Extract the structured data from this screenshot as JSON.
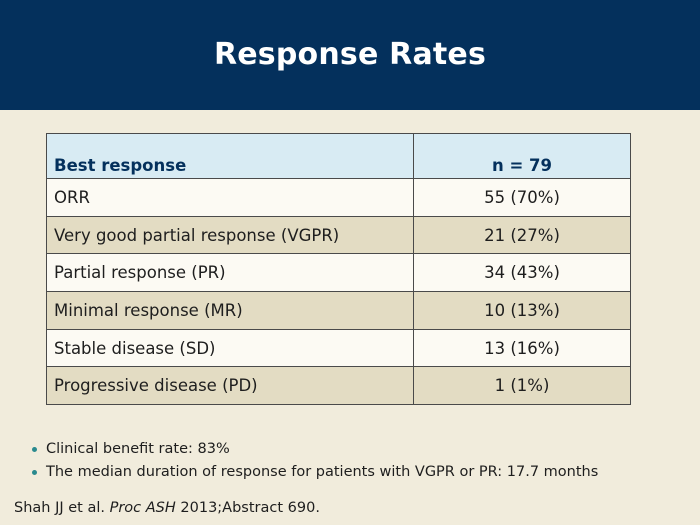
{
  "slide": {
    "title": "Response Rates"
  },
  "table": {
    "headers": [
      "Best response",
      "n = 79"
    ],
    "rows": [
      {
        "label": "ORR",
        "value": "55 (70%)"
      },
      {
        "label": "Very good partial response (VGPR)",
        "value": "21 (27%)"
      },
      {
        "label": "Partial response (PR)",
        "value": "34 (43%)"
      },
      {
        "label": "Minimal response (MR)",
        "value": "10 (13%)"
      },
      {
        "label": "Stable disease (SD)",
        "value": "13 (16%)"
      },
      {
        "label": "Progressive disease (PD)",
        "value": "1 (1%)"
      }
    ]
  },
  "bullets": [
    "Clinical benefit rate: 83%",
    "The median duration of response for patients with VGPR or PR: 17.7 months"
  ],
  "citation": {
    "authors": "Shah JJ et al.",
    "journal": "Proc ASH",
    "rest": "2013;Abstract 690."
  },
  "colors": {
    "header_bg": "#04305c",
    "page_bg": "#f1ecdc",
    "table_header_bg": "#d8ebf3",
    "row_light": "#fcfaf3",
    "row_dark": "#e3dcc3",
    "bullet": "#2a8a8e"
  }
}
